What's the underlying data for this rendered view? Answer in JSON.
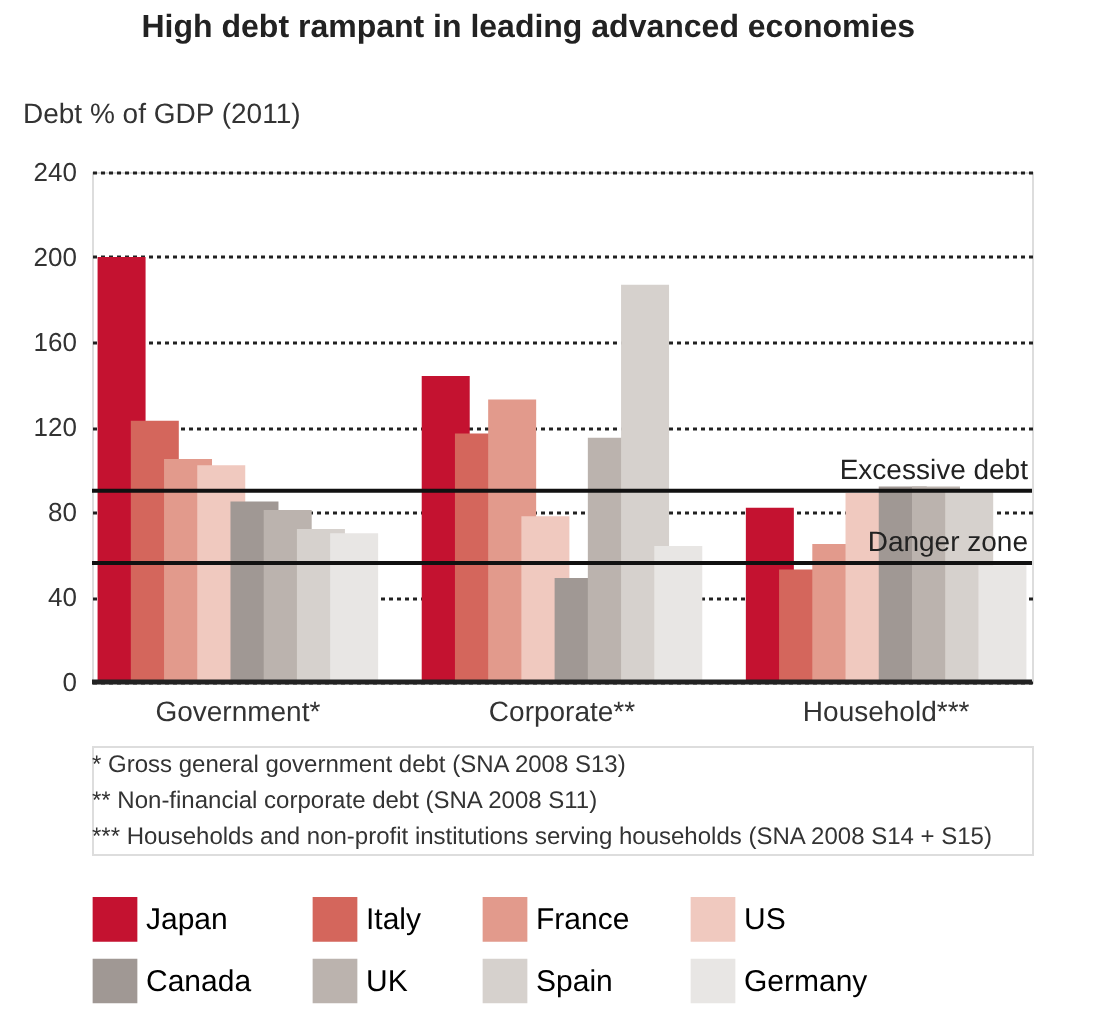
{
  "chart_data": {
    "type": "bar",
    "title": "High debt rampant in leading advanced economies",
    "ylabel": "Debt % of GDP (2011)",
    "categories": [
      "Government*",
      "Corporate**",
      "Household***"
    ],
    "series": [
      {
        "name": "Japan",
        "color": "#c41230",
        "values": [
          200,
          144,
          82
        ]
      },
      {
        "name": "Italy",
        "color": "#d4665c",
        "values": [
          123,
          117,
          53
        ]
      },
      {
        "name": "France",
        "color": "#e29a8c",
        "values": [
          105,
          133,
          65
        ]
      },
      {
        "name": "US",
        "color": "#f0c9bf",
        "values": [
          102,
          78,
          89
        ]
      },
      {
        "name": "Canada",
        "color": "#a09894",
        "values": [
          85,
          49,
          92
        ]
      },
      {
        "name": "UK",
        "color": "#bbb3ae",
        "values": [
          81,
          115,
          92
        ]
      },
      {
        "name": "Spain",
        "color": "#d6d1cd",
        "values": [
          72,
          187,
          90
        ]
      },
      {
        "name": "Germany",
        "color": "#e8e6e4",
        "values": [
          70,
          64,
          55
        ]
      }
    ],
    "ylim": [
      0,
      240
    ],
    "yticks": [
      0,
      40,
      80,
      120,
      160,
      200,
      240
    ],
    "grid": "y",
    "legend": "bottom",
    "ref_lines": [
      {
        "axis": "y",
        "value": 90,
        "label": "Excessive debt"
      },
      {
        "axis": "y",
        "value": 56,
        "label": "Danger zone"
      }
    ],
    "annotations": [
      "*      Gross general government debt (SNA 2008 S13)",
      "**     Non-financial corporate debt (SNA 2008 S11)",
      "***    Households and non-profit institutions serving households (SNA 2008 S14 + S15)"
    ]
  }
}
